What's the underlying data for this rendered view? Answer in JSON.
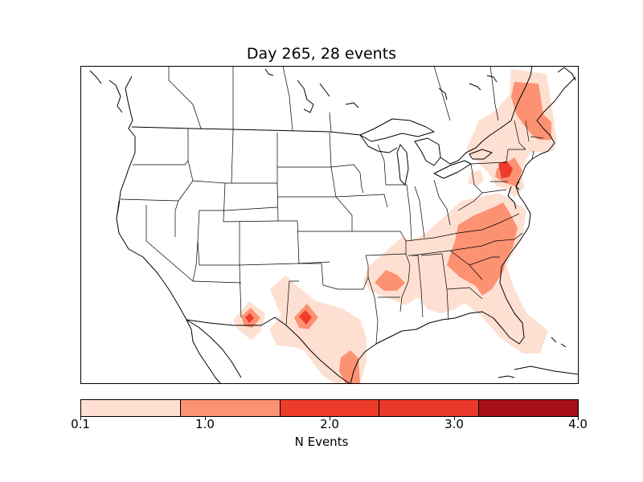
{
  "title": "Day 265, 28 events",
  "colorbar": {
    "label": "N Events",
    "ticks": [
      "0.1",
      "1.0",
      "2.0",
      "3.0",
      "4.0"
    ],
    "colors": [
      "#fee0d2",
      "#fc9272",
      "#ef3b2c",
      "#e8392a",
      "#a50f15"
    ]
  },
  "map_data": {
    "projection": "lambert-conformal",
    "region": "Continental United States",
    "borders": [
      "coastlines",
      "countries",
      "states"
    ],
    "colormap": "Reds",
    "levels": [
      0.1,
      1.0,
      2.0,
      3.0,
      4.0
    ]
  }
}
